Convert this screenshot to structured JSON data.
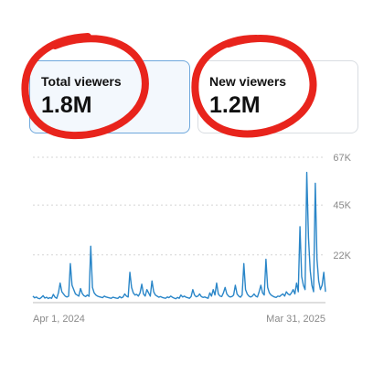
{
  "cards": [
    {
      "label": "Total viewers",
      "value": "1.8M",
      "selected": true
    },
    {
      "label": "New viewers",
      "value": "1.2M",
      "selected": false
    }
  ],
  "colors": {
    "line": "#2a86c8",
    "annotation": "#e8241c",
    "grid": "#d5d5d5",
    "tick": "#8a8a8a"
  },
  "chart_data": {
    "type": "line",
    "x_start_label": "Apr 1, 2024",
    "x_end_label": "Mar 31, 2025",
    "y_ticks": [
      "67K",
      "45K",
      "22K"
    ],
    "y_tick_values": [
      67000,
      45000,
      22000
    ],
    "ylim": [
      0,
      67000
    ],
    "series": [
      {
        "values": [
          3000,
          2200,
          2600,
          2000,
          1800,
          2400,
          3200,
          2100,
          2500,
          1900,
          2300,
          2000,
          3800,
          2500,
          2000,
          4500,
          9000,
          5000,
          4000,
          3000,
          2600,
          3000,
          18000,
          8000,
          6000,
          4000,
          3500,
          3000,
          6500,
          4200,
          3200,
          2800,
          3500,
          2900,
          26000,
          7000,
          4500,
          3500,
          3000,
          2700,
          2500,
          2300,
          3000,
          2600,
          2400,
          2200,
          2000,
          2500,
          2300,
          2100,
          2000,
          2800,
          2200,
          2600,
          4000,
          3000,
          2600,
          14000,
          7000,
          4500,
          3500,
          3800,
          3000,
          4500,
          8500,
          4000,
          3000,
          6000,
          4500,
          3000,
          10000,
          5000,
          3500,
          3000,
          2500,
          2800,
          2400,
          2200,
          2000,
          2600,
          2300,
          3000,
          2500,
          2100,
          1800,
          2400,
          2000,
          3500,
          2600,
          3000,
          2500,
          2300,
          2000,
          2800,
          6000,
          3500,
          2700,
          3000,
          4000,
          2800,
          2400,
          2600,
          2300,
          2000,
          4500,
          3000,
          6000,
          3500,
          9000,
          4000,
          3000,
          2800,
          4500,
          7000,
          4000,
          3000,
          2600,
          2800,
          3500,
          8000,
          4000,
          3000,
          2500,
          3500,
          18000,
          6000,
          4000,
          3000,
          2600,
          3000,
          4000,
          3000,
          2600,
          5000,
          8000,
          4500,
          3500,
          20000,
          7000,
          4500,
          3500,
          3000,
          2600,
          2400,
          3000,
          2800,
          3500,
          4000,
          3000,
          5000,
          4000,
          3500,
          4500,
          6000,
          4000,
          9000,
          5000,
          35000,
          12000,
          8000,
          6000,
          60000,
          30000,
          15000,
          8000,
          5000,
          55000,
          20000,
          10000,
          6000,
          8000,
          14000,
          5000
        ]
      }
    ]
  }
}
